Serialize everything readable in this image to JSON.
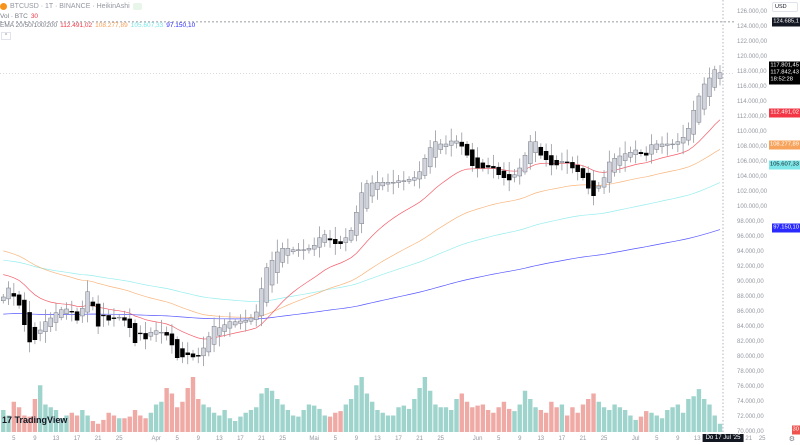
{
  "header": {
    "symbol_line": "BTCUSD · 1T · BINANCE · HeikinAshi",
    "volume_line": "Vol · BTC",
    "volume_value": "30",
    "ema_label": "EMA 20/50/100/200",
    "ema_values": [
      "112.491,02",
      "108.277,89",
      "105.607,33",
      "97.150,10"
    ],
    "collapse_icon": "chevron-up-icon"
  },
  "price_axis": {
    "currency": "USD",
    "ticks": [
      "126.000,00",
      "124.000,00",
      "122.000,00",
      "120.000,00",
      "118.000,00",
      "116.000,00",
      "114.000,00",
      "112.000,00",
      "110.000,00",
      "108.000,00",
      "106.000,00",
      "104.000,00",
      "102.000,00",
      "100.000,00",
      "98.000,00",
      "96.000,00",
      "94.000,00",
      "92.000,00",
      "90.000,00",
      "88.000,00",
      "86.000,00",
      "84.000,00",
      "82.000,00",
      "80.000,00",
      "78.000,00",
      "76.000,00",
      "74.000,00",
      "72.000,00",
      "70.000,00"
    ],
    "high_label": "124.685,1",
    "current_price": "117.801,45",
    "current_price_2": "117.842,43",
    "countdown": "18:52:28",
    "volume_tag": "30",
    "settings_icon": "gear-icon"
  },
  "time_axis": {
    "labels": [
      "5",
      "9",
      "13",
      "17",
      "21",
      "25",
      "Apr",
      "5",
      "9",
      "13",
      "17",
      "21",
      "25",
      "Mai",
      "5",
      "9",
      "13",
      "17",
      "21",
      "25",
      "Jun",
      "5",
      "9",
      "13",
      "17",
      "21",
      "25",
      "Jul",
      "5",
      "9",
      "13",
      "21",
      "25"
    ],
    "crosshair_date": "Do 17 Jul '25"
  },
  "branding": {
    "logo_text": "TradingView"
  },
  "colors": {
    "ema20": "#f23645",
    "ema50": "#f7a35c",
    "ema100": "#7ee8e8",
    "ema200": "#2a2aff",
    "up_body": "#d1d4dc",
    "down_body": "#000000",
    "vol_up": "#9fd4cd",
    "vol_down": "#efaaa6"
  },
  "chart_data": {
    "type": "candlestick-heikin-ashi",
    "unit": "thousand USD",
    "ylim": [
      70,
      126
    ],
    "closes": [
      88.0,
      89.2,
      88.1,
      86.9,
      84.3,
      82.0,
      82.3,
      83.6,
      84.7,
      85.2,
      85.9,
      86.3,
      86.4,
      86.0,
      84.9,
      86.5,
      88.7,
      86.8,
      84.1,
      85.5,
      84.9,
      85.2,
      85.3,
      84.9,
      83.9,
      81.9,
      83.1,
      82.4,
      83.3,
      83.5,
      83.3,
      82.9,
      81.6,
      79.9,
      80.0,
      80.3,
      80.0,
      80.1,
      81.2,
      82.7,
      84.1,
      83.9,
      84.3,
      84.7,
      84.7,
      84.8,
      84.9,
      85.2,
      86.0,
      89.1,
      91.9,
      92.9,
      94.0,
      94.5,
      94.5,
      94.3,
      94.3,
      94.3,
      94.5,
      94.9,
      95.9,
      96.3,
      95.6,
      95.1,
      95.1,
      95.9,
      96.9,
      99.3,
      101.9,
      103.1,
      103.2,
      103.3,
      103.3,
      103.3,
      103.3,
      103.5,
      103.5,
      103.7,
      103.9,
      104.7,
      106.5,
      107.9,
      108.7,
      108.4,
      108.4,
      108.8,
      108.8,
      108.1,
      106.9,
      105.5,
      105.2,
      105.2,
      105.3,
      105.2,
      104.3,
      103.9,
      103.6,
      104.3,
      105.2,
      106.9,
      108.7,
      108.7,
      106.9,
      106.3,
      105.6,
      105.6,
      106.1,
      105.9,
      105.2,
      104.7,
      103.9,
      102.5,
      101.5,
      102.8,
      103.9,
      106.0,
      106.5,
      106.8,
      107.1,
      107.3,
      107.6,
      107.1,
      106.9,
      108.3,
      108.4,
      108.4,
      108.4,
      108.4,
      108.7,
      109.3,
      110.5,
      112.9,
      114.8,
      116.4,
      117.2,
      118.3,
      117.9
    ],
    "volume_relative": [
      40,
      30,
      55,
      45,
      30,
      28,
      60,
      85,
      50,
      45,
      40,
      25,
      30,
      35,
      30,
      40,
      30,
      20,
      15,
      22,
      35,
      30,
      25,
      25,
      28,
      40,
      30,
      25,
      35,
      50,
      55,
      80,
      70,
      45,
      55,
      80,
      100,
      60,
      50,
      45,
      35,
      30,
      40,
      25,
      20,
      28,
      35,
      40,
      45,
      70,
      80,
      75,
      60,
      50,
      40,
      30,
      28,
      40,
      50,
      48,
      42,
      30,
      28,
      35,
      38,
      50,
      60,
      85,
      100,
      70,
      55,
      40,
      35,
      30,
      30,
      45,
      48,
      42,
      60,
      80,
      100,
      75,
      50,
      45,
      45,
      40,
      60,
      70,
      55,
      45,
      48,
      50,
      40,
      35,
      45,
      55,
      42,
      38,
      50,
      75,
      60,
      45,
      40,
      35,
      55,
      45,
      50,
      30,
      45,
      35,
      50,
      60,
      70,
      55,
      45,
      40,
      50,
      45,
      40,
      30,
      22,
      28,
      38,
      35,
      30,
      25,
      40,
      45,
      50,
      35,
      60,
      65,
      78,
      60,
      50,
      30,
      15
    ],
    "ema_start": {
      "ema20": 91.3,
      "ema50": 94.4,
      "ema100": 93.0,
      "ema200": 85.7
    },
    "ema_end": {
      "ema20": 112.491,
      "ema50": 108.278,
      "ema100": 105.607,
      "ema200": 97.15
    },
    "high": 124.685,
    "last": 117.801
  }
}
